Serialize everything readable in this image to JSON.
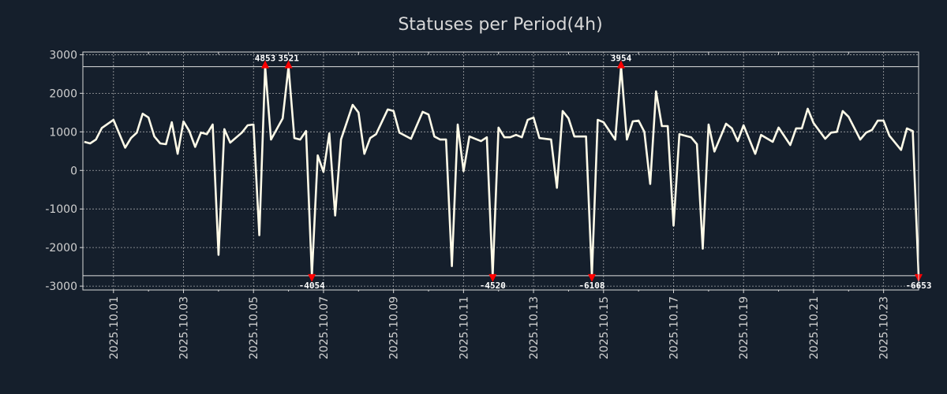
{
  "chart_data": {
    "type": "line",
    "title": "Statuses per Period(4h)",
    "xlabel": "",
    "ylabel": "",
    "x_unit": "hours since 2025-10-01 00:00",
    "xlim_hours": [
      -21,
      552
    ],
    "ylim": [
      -3100,
      3070
    ],
    "clip_range": [
      -2730,
      2690
    ],
    "grid": true,
    "yticks": [
      -3000,
      -2000,
      -1000,
      0,
      1000,
      2000,
      3000
    ],
    "ytick_labels": [
      "-3000",
      "-2000",
      "-1000",
      "0",
      "1000",
      "2000",
      "3000"
    ],
    "xticks_hours": [
      0,
      48,
      96,
      144,
      192,
      240,
      288,
      336,
      384,
      432,
      480,
      528
    ],
    "xtick_labels": [
      "2025.10.01",
      "2025.10.03",
      "2025.10.05",
      "2025.10.07",
      "2025.10.09",
      "2025.10.11",
      "2025.10.13",
      "2025.10.15",
      "2025.10.17",
      "2025.10.19",
      "2025.10.21",
      "2025.10.23"
    ],
    "colors": {
      "line": "#fffbe8",
      "marker": "#ff0000",
      "background": "#151f2c",
      "grid": "#c8c8c8"
    },
    "series": [
      {
        "name": "Statuses",
        "x": [
          -20,
          -16,
          -12,
          -8,
          0,
          8,
          12,
          16,
          20,
          24,
          28,
          32,
          36,
          40,
          44,
          48,
          52,
          56,
          60,
          64,
          68,
          72,
          76,
          80,
          88,
          92,
          96,
          100,
          104,
          108,
          116,
          120,
          124,
          128,
          132,
          136,
          140,
          144,
          148,
          152,
          156,
          164,
          168,
          172,
          176,
          180,
          188,
          192,
          196,
          204,
          212,
          216,
          220,
          224,
          228,
          232,
          236,
          240,
          244,
          252,
          256,
          260,
          264,
          268,
          272,
          276,
          280,
          284,
          288,
          292,
          300,
          304,
          308,
          312,
          316,
          324,
          328,
          332,
          336,
          344,
          348,
          352,
          356,
          360,
          364,
          368,
          372,
          376,
          380,
          384,
          388,
          396,
          400,
          404,
          408,
          412,
          420,
          424,
          428,
          432,
          440,
          444,
          452,
          456,
          464,
          468,
          472,
          476,
          480,
          488,
          492,
          496,
          500,
          504,
          512,
          516,
          520,
          524,
          528,
          532,
          540,
          544,
          548,
          552
        ],
        "values": [
          740,
          700,
          800,
          1100,
          1310,
          590,
          840,
          980,
          1470,
          1370,
          880,
          700,
          680,
          1250,
          430,
          1270,
          1020,
          610,
          980,
          940,
          1190,
          -2190,
          1070,
          720,
          980,
          1170,
          1190,
          -1680,
          4853,
          800,
          1350,
          3521,
          840,
          800,
          1020,
          -4054,
          390,
          -40,
          960,
          -1170,
          800,
          1700,
          1500,
          430,
          840,
          940,
          1580,
          1540,
          980,
          820,
          1520,
          1450,
          880,
          800,
          800,
          -2480,
          1190,
          -20,
          880,
          760,
          860,
          -4520,
          1110,
          860,
          860,
          920,
          860,
          1310,
          1370,
          840,
          800,
          -450,
          1540,
          1350,
          880,
          880,
          -6108,
          1310,
          1250,
          800,
          3954,
          800,
          1270,
          1290,
          1000,
          -350,
          2050,
          1150,
          1150,
          -1430,
          940,
          860,
          680,
          -2030,
          1190,
          490,
          1210,
          1090,
          760,
          1170,
          430,
          920,
          740,
          1110,
          660,
          1090,
          1090,
          1600,
          1230,
          820,
          980,
          1000,
          1540,
          1390,
          800,
          980,
          1050,
          1290,
          1290,
          900,
          530,
          1090,
          1020,
          -6653
        ]
      }
    ],
    "annotations": [
      {
        "value": 4853,
        "text": "4853",
        "direction": "up"
      },
      {
        "value": 3521,
        "text": "3521",
        "direction": "up"
      },
      {
        "value": 3954,
        "text": "3954",
        "direction": "up"
      },
      {
        "value": -4054,
        "text": "-4054",
        "direction": "down"
      },
      {
        "value": -4520,
        "text": "-4520",
        "direction": "down"
      },
      {
        "value": -6108,
        "text": "-6108",
        "direction": "down"
      },
      {
        "value": -6653,
        "text": "-6653",
        "direction": "down"
      }
    ]
  }
}
